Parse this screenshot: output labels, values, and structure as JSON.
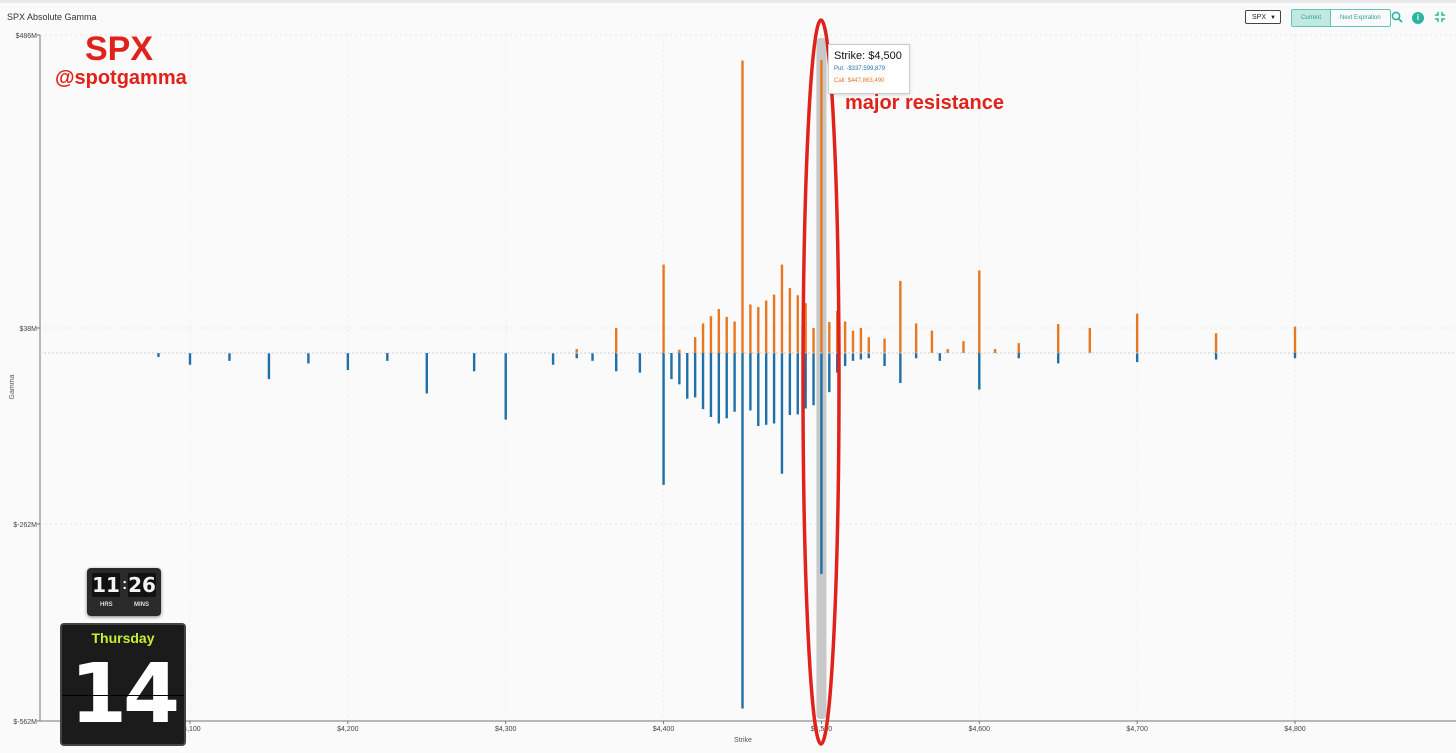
{
  "header": {
    "title": "SPX Absolute Gamma",
    "symbol_select": "SPX",
    "buttons": [
      "Current",
      "Next Expiration"
    ]
  },
  "colors": {
    "call": "#e87722",
    "put": "#1f6fa8",
    "highlight": "#c8c8c8",
    "accent": "#2bb4a0",
    "annotation": "#e0221b"
  },
  "icons": {
    "search": "search-icon",
    "info": "info-icon",
    "collapse": "collapse-icon"
  },
  "annotations": {
    "brand": "SPX",
    "handle": "@spotgamma",
    "resistance": "major resistance"
  },
  "tooltip": {
    "strike": "Strike: $4,500",
    "put": "Put: -$337,599,879",
    "call": "Call: $447,863,490"
  },
  "widget": {
    "hours": "11",
    "minutes": "26",
    "hours_label": "HRS",
    "minutes_label": "MINS",
    "day": "Thursday",
    "date": "14"
  },
  "chart_data": {
    "type": "bar",
    "xlabel": "Strike",
    "ylabel": "Gamma",
    "ylim": [
      -562,
      486
    ],
    "xlim": [
      4060,
      4885
    ],
    "y_ticks": [
      486,
      38,
      -262,
      -562
    ],
    "y_tick_labels": [
      "$486M",
      "$38M",
      "$-262M",
      "$-562M"
    ],
    "x_ticks": [
      4100,
      4200,
      4300,
      4400,
      4500,
      4600,
      4700,
      4800
    ],
    "x_tick_labels": [
      "$4,100",
      "$4,200",
      "$4,300",
      "$4,400",
      "$4,500",
      "$4,600",
      "$4,700",
      "$4,800"
    ],
    "grid": true,
    "highlighted_strike": 4500,
    "series": [
      {
        "name": "Call",
        "x": [
          4345,
          4370,
          4400,
          4410,
          4420,
          4425,
          4430,
          4435,
          4440,
          4445,
          4450,
          4455,
          4460,
          4465,
          4470,
          4475,
          4480,
          4485,
          4490,
          4495,
          4500,
          4505,
          4510,
          4515,
          4520,
          4525,
          4530,
          4540,
          4550,
          4560,
          4570,
          4580,
          4590,
          4600,
          4610,
          4625,
          4650,
          4670,
          4700,
          4750,
          4800
        ],
        "values": [
          6,
          38,
          135,
          5,
          24,
          45,
          56,
          67,
          55,
          48,
          447,
          74,
          70,
          80,
          89,
          135,
          99,
          88,
          76,
          38,
          448,
          47,
          64,
          48,
          34,
          38,
          24,
          22,
          110,
          45,
          34,
          6,
          18,
          126,
          6,
          15,
          44,
          38,
          60,
          30,
          40
        ]
      },
      {
        "name": "Put",
        "x": [
          4080,
          4100,
          4125,
          4150,
          4175,
          4200,
          4225,
          4250,
          4280,
          4300,
          4330,
          4345,
          4355,
          4370,
          4385,
          4400,
          4405,
          4410,
          4415,
          4420,
          4425,
          4430,
          4435,
          4440,
          4445,
          4450,
          4455,
          4460,
          4465,
          4470,
          4475,
          4480,
          4485,
          4490,
          4495,
          4500,
          4505,
          4510,
          4515,
          4520,
          4525,
          4530,
          4540,
          4550,
          4560,
          4575,
          4600,
          4625,
          4650,
          4700,
          4750,
          4800
        ],
        "values": [
          -6,
          -18,
          -12,
          -40,
          -16,
          -26,
          -12,
          -62,
          -28,
          -102,
          -18,
          -8,
          -12,
          -28,
          -30,
          -202,
          -40,
          -48,
          -70,
          -68,
          -86,
          -98,
          -108,
          -100,
          -90,
          -543,
          -88,
          -112,
          -110,
          -108,
          -185,
          -95,
          -94,
          -85,
          -80,
          -338,
          -60,
          -30,
          -20,
          -12,
          -10,
          -8,
          -20,
          -46,
          -8,
          -12,
          -56,
          -8,
          -16,
          -14,
          -10,
          -8
        ]
      }
    ]
  }
}
